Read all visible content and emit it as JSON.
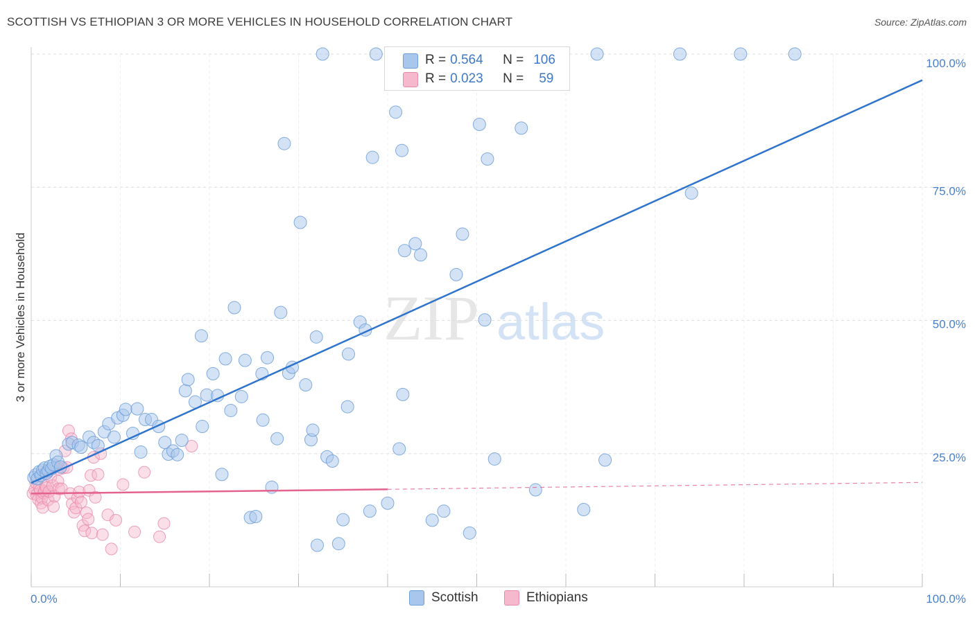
{
  "header": {
    "title": "SCOTTISH VS ETHIOPIAN 3 OR MORE VEHICLES IN HOUSEHOLD CORRELATION CHART",
    "source": "Source: ZipAtlas.com"
  },
  "legend": {
    "rows": [
      {
        "r_label": "R =",
        "r_value": "0.564",
        "n_label": "N =",
        "n_value": "106"
      },
      {
        "r_label": "R =",
        "r_value": "0.023",
        "n_label": "N =",
        "n_value": "59"
      }
    ]
  },
  "bottom_legend": [
    "Scottish",
    "Ethiopians"
  ],
  "watermark": {
    "zip": "ZIP",
    "atlas": "atlas"
  },
  "colors": {
    "scottish_fill": "#a9c6ec",
    "scottish_stroke": "#6f9fd8",
    "scottish_line": "#2f74cc",
    "ethiopian_fill": "#f6b8cc",
    "ethiopian_stroke": "#e98aaa",
    "ethiopian_line": "#e4628e",
    "tick_text": "#4a7fcc",
    "grid": "#dddddd"
  },
  "chart_data": {
    "type": "scatter",
    "title": "SCOTTISH VS ETHIOPIAN 3 OR MORE VEHICLES IN HOUSEHOLD CORRELATION CHART",
    "xlabel": "",
    "ylabel": "3 or more Vehicles in Household",
    "xlim": [
      0,
      100
    ],
    "ylim": [
      0,
      100
    ],
    "x_tick_labels": [
      "0.0%",
      "100.0%"
    ],
    "y_tick_labels": [
      "25.0%",
      "50.0%",
      "75.0%",
      "100.0%"
    ],
    "y_ticks": [
      25,
      50,
      75,
      100
    ],
    "grid": true,
    "legend_position": "top-center",
    "series": [
      {
        "name": "Scottish",
        "r": 0.564,
        "n": 106,
        "trend": {
          "x": [
            0,
            100
          ],
          "y": [
            19.5,
            95.1
          ],
          "style": "solid"
        },
        "points": [
          [
            0.3,
            20.5
          ],
          [
            0.5,
            21.0
          ],
          [
            0.7,
            20.3
          ],
          [
            0.9,
            21.6
          ],
          [
            1.1,
            20.9
          ],
          [
            1.3,
            21.9
          ],
          [
            1.5,
            22.3
          ],
          [
            1.7,
            21.3
          ],
          [
            1.9,
            21.8
          ],
          [
            2.1,
            22.6
          ],
          [
            2.3,
            22.2
          ],
          [
            2.5,
            22.9
          ],
          [
            2.8,
            24.6
          ],
          [
            3.0,
            23.4
          ],
          [
            3.3,
            22.5
          ],
          [
            4.2,
            26.8
          ],
          [
            4.6,
            27.1
          ],
          [
            5.3,
            26.6
          ],
          [
            5.6,
            26.2
          ],
          [
            6.5,
            28.1
          ],
          [
            7.0,
            27.1
          ],
          [
            7.5,
            26.5
          ],
          [
            8.2,
            29.1
          ],
          [
            8.7,
            30.6
          ],
          [
            9.3,
            28.1
          ],
          [
            9.7,
            31.7
          ],
          [
            10.3,
            32.2
          ],
          [
            10.6,
            33.3
          ],
          [
            11.4,
            28.8
          ],
          [
            11.9,
            33.4
          ],
          [
            12.8,
            31.4
          ],
          [
            12.3,
            25.3
          ],
          [
            13.5,
            31.4
          ],
          [
            14.3,
            30.1
          ],
          [
            15.0,
            27.1
          ],
          [
            15.4,
            24.9
          ],
          [
            15.9,
            25.5
          ],
          [
            16.4,
            24.8
          ],
          [
            16.9,
            27.5
          ],
          [
            17.3,
            36.8
          ],
          [
            17.6,
            38.9
          ],
          [
            18.4,
            34.7
          ],
          [
            19.2,
            30.1
          ],
          [
            19.1,
            47.1
          ],
          [
            19.7,
            36.0
          ],
          [
            20.4,
            40.0
          ],
          [
            20.9,
            35.9
          ],
          [
            21.4,
            21.1
          ],
          [
            21.8,
            42.8
          ],
          [
            22.4,
            33.1
          ],
          [
            22.8,
            52.4
          ],
          [
            23.6,
            35.7
          ],
          [
            24.0,
            42.5
          ],
          [
            24.6,
            13.0
          ],
          [
            25.2,
            13.2
          ],
          [
            25.9,
            40.0
          ],
          [
            26.0,
            31.3
          ],
          [
            26.5,
            43.0
          ],
          [
            27.0,
            18.7
          ],
          [
            27.6,
            27.8
          ],
          [
            28.0,
            51.5
          ],
          [
            28.4,
            83.2
          ],
          [
            28.9,
            40.1
          ],
          [
            29.3,
            41.2
          ],
          [
            30.2,
            68.4
          ],
          [
            30.8,
            37.9
          ],
          [
            31.4,
            27.6
          ],
          [
            31.6,
            29.4
          ],
          [
            32.0,
            46.9
          ],
          [
            32.1,
            7.8
          ],
          [
            32.7,
            100.0
          ],
          [
            33.2,
            24.4
          ],
          [
            33.8,
            23.6
          ],
          [
            34.5,
            8.1
          ],
          [
            35.0,
            12.6
          ],
          [
            35.5,
            33.8
          ],
          [
            35.6,
            43.7
          ],
          [
            36.9,
            49.7
          ],
          [
            37.5,
            48.2
          ],
          [
            38.0,
            14.2
          ],
          [
            38.3,
            80.6
          ],
          [
            38.7,
            100.0
          ],
          [
            40.0,
            15.7
          ],
          [
            40.9,
            89.1
          ],
          [
            41.3,
            25.9
          ],
          [
            41.6,
            81.9
          ],
          [
            41.7,
            36.1
          ],
          [
            41.9,
            63.1
          ],
          [
            43.1,
            64.4
          ],
          [
            43.7,
            62.3
          ],
          [
            45.0,
            12.5
          ],
          [
            46.3,
            14.2
          ],
          [
            47.7,
            58.6
          ],
          [
            48.4,
            66.2
          ],
          [
            49.2,
            10.1
          ],
          [
            50.3,
            86.8
          ],
          [
            50.9,
            50.1
          ],
          [
            51.2,
            80.3
          ],
          [
            52.0,
            24.0
          ],
          [
            55.0,
            86.1
          ],
          [
            56.6,
            18.2
          ],
          [
            57.1,
            100.0
          ],
          [
            58.7,
            100.0
          ],
          [
            62.0,
            14.5
          ],
          [
            64.4,
            23.8
          ],
          [
            74.1,
            73.9
          ],
          [
            72.8,
            100.0
          ],
          [
            79.6,
            100.0
          ],
          [
            85.7,
            100.0
          ],
          [
            63.5,
            100.0
          ]
        ]
      },
      {
        "name": "Ethiopians",
        "r": 0.023,
        "n": 59,
        "trend": {
          "x": [
            0,
            40,
            100
          ],
          "y": [
            17.5,
            18.3,
            19.6
          ],
          "style": "solid-then-dashed"
        },
        "points": [
          [
            0.2,
            17.5
          ],
          [
            0.4,
            18.2
          ],
          [
            0.5,
            19.6
          ],
          [
            0.6,
            17.3
          ],
          [
            0.8,
            16.4
          ],
          [
            0.9,
            18.6
          ],
          [
            1.0,
            18.1
          ],
          [
            1.1,
            15.7
          ],
          [
            1.2,
            16.7
          ],
          [
            1.3,
            14.9
          ],
          [
            1.4,
            17.6
          ],
          [
            1.5,
            18.0
          ],
          [
            1.6,
            19.0
          ],
          [
            1.7,
            18.6
          ],
          [
            1.8,
            21.4
          ],
          [
            1.9,
            16.3
          ],
          [
            2.0,
            17.9
          ],
          [
            2.2,
            20.6
          ],
          [
            2.4,
            19.0
          ],
          [
            2.5,
            15.1
          ],
          [
            2.6,
            17.0
          ],
          [
            2.8,
            22.7
          ],
          [
            3.0,
            19.8
          ],
          [
            3.1,
            18.4
          ],
          [
            3.2,
            22.1
          ],
          [
            3.4,
            18.4
          ],
          [
            3.6,
            22.3
          ],
          [
            3.8,
            25.5
          ],
          [
            4.0,
            22.4
          ],
          [
            4.2,
            29.3
          ],
          [
            4.4,
            17.5
          ],
          [
            4.5,
            27.8
          ],
          [
            4.6,
            15.6
          ],
          [
            4.8,
            14.0
          ],
          [
            5.0,
            14.8
          ],
          [
            5.2,
            16.7
          ],
          [
            5.4,
            17.8
          ],
          [
            5.6,
            15.9
          ],
          [
            5.8,
            11.5
          ],
          [
            6.0,
            10.5
          ],
          [
            6.2,
            13.9
          ],
          [
            6.4,
            12.7
          ],
          [
            6.5,
            18.1
          ],
          [
            6.7,
            20.9
          ],
          [
            6.8,
            10.1
          ],
          [
            7.0,
            24.3
          ],
          [
            7.2,
            16.8
          ],
          [
            7.5,
            21.1
          ],
          [
            7.8,
            25.0
          ],
          [
            8.0,
            9.8
          ],
          [
            8.6,
            13.5
          ],
          [
            9.0,
            7.1
          ],
          [
            9.5,
            12.5
          ],
          [
            10.3,
            19.2
          ],
          [
            11.6,
            10.3
          ],
          [
            12.7,
            21.5
          ],
          [
            14.4,
            9.4
          ],
          [
            14.9,
            11.9
          ],
          [
            18.0,
            26.4
          ]
        ]
      }
    ]
  }
}
